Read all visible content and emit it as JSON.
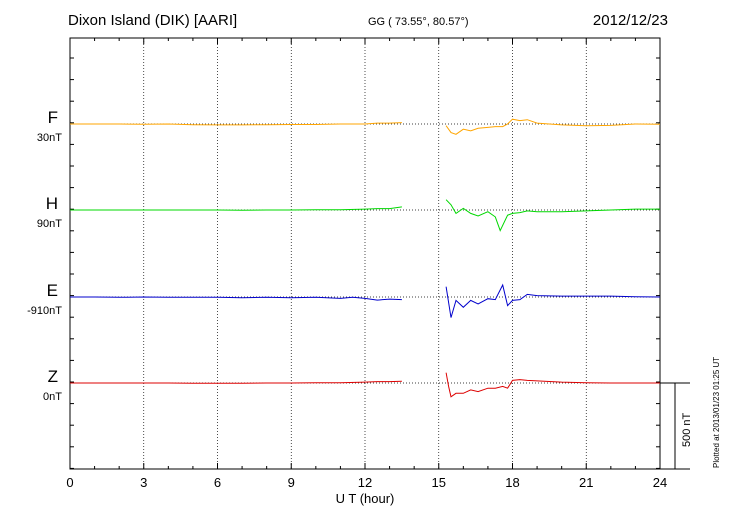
{
  "header": {
    "title": "Dixon Island (DIK)  [AARI]",
    "coords": "GG ( 73.55°,  80.57°)",
    "date": "2012/12/23"
  },
  "footer_note": "Plotted at 2013/01/23 01:25 UT",
  "chart_data": {
    "type": "line",
    "xlabel": "U T (hour)",
    "xlim": [
      0,
      24
    ],
    "xticks": [
      0,
      3,
      6,
      9,
      12,
      15,
      18,
      21,
      24
    ],
    "grid": true,
    "gap_hours": [
      13.5,
      15.3
    ],
    "scale_bar": {
      "label": "500 nT",
      "value_nT": 500
    },
    "series": [
      {
        "name": "F",
        "baseline": "30nT",
        "color": "#ffa500",
        "x": [
          0,
          1,
          2,
          3,
          4,
          5,
          6,
          7,
          8,
          9,
          10,
          11,
          12,
          12.5,
          13,
          13.5,
          15.3,
          15.5,
          15.7,
          16,
          16.3,
          16.6,
          17,
          17.3,
          17.6,
          17.8,
          18,
          18.3,
          18.6,
          19,
          20,
          21,
          22,
          23,
          24
        ],
        "y": [
          0,
          0,
          0,
          -2,
          0,
          -4,
          -5,
          -5,
          -4,
          -3,
          -3,
          0,
          0,
          5,
          5,
          8,
          -10,
          -50,
          -60,
          -30,
          -40,
          -25,
          -20,
          -15,
          -15,
          0,
          28,
          20,
          25,
          5,
          -5,
          -10,
          -8,
          0,
          -2
        ]
      },
      {
        "name": "H",
        "baseline": "90nT",
        "color": "#00d800",
        "x": [
          0,
          1,
          2,
          3,
          4,
          5,
          6,
          7,
          8,
          9,
          10,
          11,
          12,
          12.5,
          13,
          13.5,
          15.3,
          15.5,
          15.7,
          16,
          16.3,
          16.6,
          17,
          17.3,
          17.5,
          17.8,
          18,
          18.3,
          18.6,
          19,
          20,
          21,
          22,
          23,
          24
        ],
        "y": [
          0,
          0,
          0,
          0,
          0,
          0,
          0,
          -2,
          0,
          0,
          2,
          2,
          5,
          8,
          8,
          18,
          60,
          30,
          -20,
          10,
          -20,
          -35,
          -10,
          -40,
          -120,
          -30,
          -20,
          -15,
          -5,
          -10,
          -10,
          -5,
          0,
          5,
          5
        ]
      },
      {
        "name": "E",
        "baseline": "-910nT",
        "color": "#0000cc",
        "x": [
          0,
          1,
          2,
          3,
          4,
          5,
          6,
          7,
          8,
          9,
          10,
          11,
          11.5,
          12,
          12.5,
          13,
          13.5,
          15.3,
          15.5,
          15.7,
          16,
          16.3,
          16.6,
          17,
          17.3,
          17.6,
          17.8,
          18,
          18.3,
          18.6,
          19,
          20,
          21,
          22,
          23,
          24
        ],
        "y": [
          0,
          0,
          -2,
          0,
          -2,
          -2,
          -2,
          -4,
          -2,
          -4,
          -2,
          -8,
          -2,
          -8,
          -18,
          -12,
          -15,
          60,
          -120,
          -20,
          -60,
          -20,
          -40,
          -10,
          -15,
          70,
          -50,
          -20,
          -15,
          15,
          8,
          5,
          5,
          5,
          2,
          0
        ]
      },
      {
        "name": "Z",
        "baseline": "0nT",
        "color": "#dd0000",
        "x": [
          0,
          1,
          2,
          3,
          4,
          5,
          6,
          7,
          8,
          9,
          10,
          11,
          12,
          12.5,
          13,
          13.5,
          15.3,
          15.4,
          15.5,
          15.7,
          16,
          16.3,
          16.6,
          17,
          17.3,
          17.6,
          17.8,
          18,
          18.3,
          18.6,
          19,
          20,
          21,
          22,
          23,
          24
        ],
        "y": [
          0,
          0,
          0,
          0,
          0,
          -2,
          -2,
          -2,
          0,
          0,
          2,
          2,
          5,
          8,
          8,
          10,
          60,
          -20,
          -80,
          -60,
          -60,
          -40,
          -50,
          -30,
          -30,
          -20,
          -30,
          15,
          20,
          15,
          12,
          5,
          2,
          0,
          0,
          0
        ]
      }
    ]
  }
}
